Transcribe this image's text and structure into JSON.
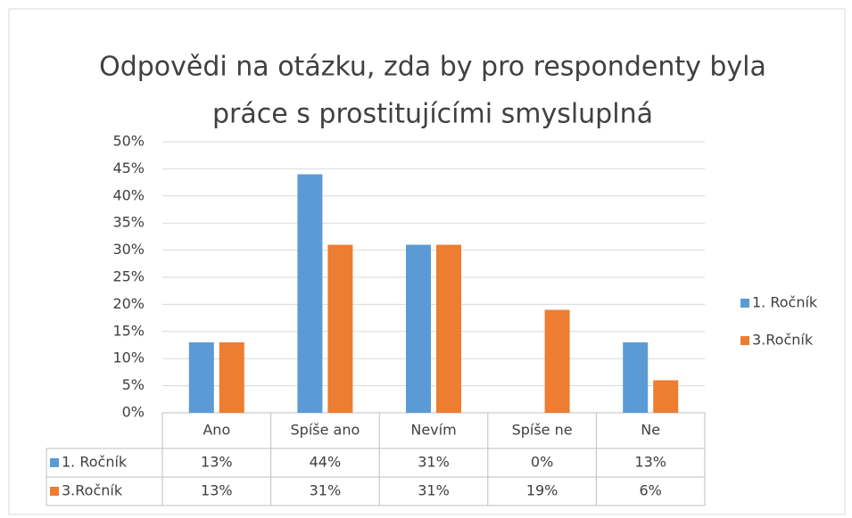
{
  "chart_data": {
    "type": "bar",
    "title": "Odpovědi na otázku, zda by pro respondenty byla",
    "subtitle": "práce s prostitujícími smysluplná",
    "categories": [
      "Ano",
      "Spíše ano",
      "Nevím",
      "Spíše ne",
      "Ne"
    ],
    "series": [
      {
        "name": "1. Ročník",
        "color": "#5b9bd5",
        "values": [
          13,
          44,
          31,
          0,
          13
        ],
        "value_labels": [
          "13%",
          "44%",
          "31%",
          "0%",
          "13%"
        ]
      },
      {
        "name": "3.Ročník",
        "color": "#ed7d31",
        "values": [
          13,
          31,
          31,
          19,
          6
        ],
        "value_labels": [
          "13%",
          "31%",
          "31%",
          "19%",
          "6%"
        ]
      }
    ],
    "ylim": [
      0,
      50
    ],
    "yticks": [
      {
        "value": 0,
        "label": "0%"
      },
      {
        "value": 5,
        "label": "5%"
      },
      {
        "value": 10,
        "label": "10%"
      },
      {
        "value": 15,
        "label": "15%"
      },
      {
        "value": 20,
        "label": "20%"
      },
      {
        "value": 25,
        "label": "25%"
      },
      {
        "value": 30,
        "label": "30%"
      },
      {
        "value": 35,
        "label": "35%"
      },
      {
        "value": 40,
        "label": "40%"
      },
      {
        "value": 45,
        "label": "45%"
      },
      {
        "value": 50,
        "label": "50%"
      }
    ],
    "grid": true,
    "legend": "right"
  }
}
